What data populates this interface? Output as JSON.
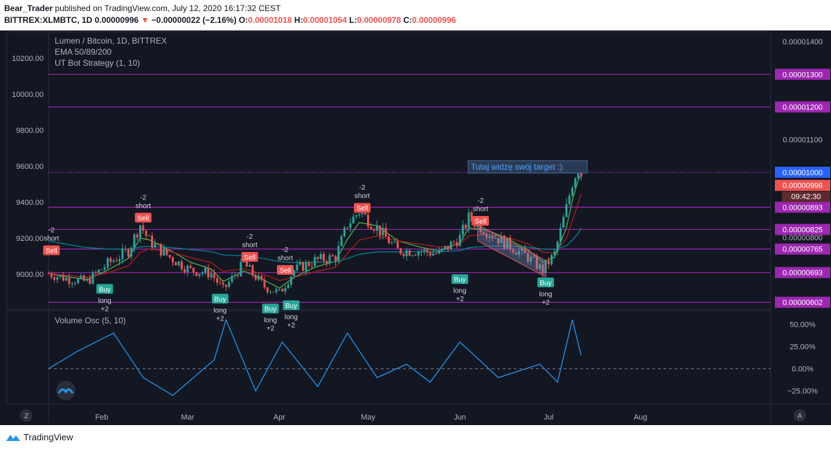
{
  "header": {
    "author": "Bear_Trader",
    "published_text": "published on TradingView.com, July 12, 2020 16:17:32 CEST",
    "symbol": "BITTREX:XLMBTC, 1D",
    "last": "0.00000996",
    "change": "−0.00000022 (−2.16%)",
    "o_label": "O:",
    "o": "0.00001018",
    "h_label": "H:",
    "h": "0.00001054",
    "l_label": "L:",
    "l": "0.00000978",
    "c_label": "C:",
    "c": "0.00000996"
  },
  "legend": {
    "title": "Lumen / Bitcoin, 1D, BITTREX",
    "ema": "EMA 50/89/200",
    "strategy": "UT Bot Strategy (1, 10)",
    "oscillator": "Volume Osc (5, 10)"
  },
  "annotation": "Tutaj widzę swój target  :)",
  "right_axis": {
    "ticks": [
      "0.00001400",
      "0.00001100",
      "0.00000800"
    ],
    "level_labels": [
      "0.00001300",
      "0.00001200",
      "0.00001000",
      "0.00000893",
      "0.00000825",
      "0.00000765",
      "0.00000693",
      "0.00000602"
    ],
    "last_price": "0.00000996",
    "countdown": "09:42:30"
  },
  "left_axis": {
    "ticks": [
      "10200.00",
      "10000.00",
      "9800.00",
      "9600.00",
      "9400.00",
      "9200.00",
      "9000.00"
    ]
  },
  "osc_axis": {
    "ticks": [
      "50.00%",
      "25.00%",
      "0.00%",
      "−25.00%"
    ]
  },
  "time_axis": {
    "labels": [
      "Feb",
      "Mar",
      "Apr",
      "May",
      "Jun",
      "Jul",
      "Aug"
    ]
  },
  "corner_left": "Z",
  "corner_right": "A",
  "footer": {
    "brand": "TradingView"
  },
  "signals": [
    {
      "kind": "sell",
      "label": "Sell",
      "text1": "-2",
      "text2": "short"
    },
    {
      "kind": "buy",
      "label": "Buy",
      "text1": "long",
      "text2": "+2"
    }
  ],
  "colors": {
    "background": "#131722",
    "level_line": "#9c27b0",
    "level_label_bg": "#9c27b0",
    "last_price_bg": "#ef5350",
    "blue_label_bg": "#2962ff",
    "up": "#26a69a",
    "down": "#ef5350",
    "ema50": "#4caf50",
    "ema89": "#b71c1c",
    "ema200": "#00838f",
    "oscillator": "#2196f3"
  },
  "chart_data": {
    "type": "candlestick",
    "symbol": "XLMBTC",
    "timeframe": "1D",
    "x_range": [
      "2020-01-14",
      "2020-08-31"
    ],
    "y_range": [
      5.8e-06,
      1.43e-05
    ],
    "right_axis_ticks": [
      1.4e-05,
      1.1e-05,
      8e-06
    ],
    "horizontal_levels": [
      1.3e-05,
      1.2e-05,
      1e-05,
      8.93e-06,
      8.25e-06,
      7.65e-06,
      6.93e-06,
      6.02e-06
    ],
    "last_price": 9.96e-06,
    "last_bar": {
      "open": 1.018e-05,
      "high": 1.054e-05,
      "low": 9.78e-06,
      "close": 9.96e-06
    },
    "price_path": [
      {
        "date": "2020-01-14",
        "close": 6.9e-06
      },
      {
        "date": "2020-01-20",
        "close": 6.75e-06
      },
      {
        "date": "2020-01-27",
        "close": 6.65e-06
      },
      {
        "date": "2020-02-03",
        "close": 7.2e-06
      },
      {
        "date": "2020-02-10",
        "close": 7.6e-06
      },
      {
        "date": "2020-02-14",
        "close": 8.4e-06
      },
      {
        "date": "2020-02-17",
        "close": 7.9e-06
      },
      {
        "date": "2020-02-24",
        "close": 7.4e-06
      },
      {
        "date": "2020-03-02",
        "close": 7e-06
      },
      {
        "date": "2020-03-09",
        "close": 6.9e-06
      },
      {
        "date": "2020-03-13",
        "close": 6.4e-06
      },
      {
        "date": "2020-03-20",
        "close": 7.2e-06
      },
      {
        "date": "2020-03-27",
        "close": 6.5e-06
      },
      {
        "date": "2020-04-01",
        "close": 6.3e-06
      },
      {
        "date": "2020-04-06",
        "close": 7e-06
      },
      {
        "date": "2020-04-13",
        "close": 7.3e-06
      },
      {
        "date": "2020-04-20",
        "close": 7.4e-06
      },
      {
        "date": "2020-04-24",
        "close": 8.4e-06
      },
      {
        "date": "2020-04-28",
        "close": 8.8e-06
      },
      {
        "date": "2020-05-04",
        "close": 8.3e-06
      },
      {
        "date": "2020-05-11",
        "close": 7.6e-06
      },
      {
        "date": "2020-05-18",
        "close": 7.6e-06
      },
      {
        "date": "2020-05-25",
        "close": 7.5e-06
      },
      {
        "date": "2020-06-01",
        "close": 8e-06
      },
      {
        "date": "2020-06-04",
        "close": 8.6e-06
      },
      {
        "date": "2020-06-10",
        "close": 8.2e-06
      },
      {
        "date": "2020-06-17",
        "close": 7.8e-06
      },
      {
        "date": "2020-06-24",
        "close": 7.4e-06
      },
      {
        "date": "2020-06-29",
        "close": 7e-06
      },
      {
        "date": "2020-07-03",
        "close": 7.5e-06
      },
      {
        "date": "2020-07-07",
        "close": 8.9e-06
      },
      {
        "date": "2020-07-09",
        "close": 9.7e-06
      },
      {
        "date": "2020-07-11",
        "close": 1.02e-05
      },
      {
        "date": "2020-07-12",
        "close": 9.96e-06
      }
    ],
    "series": [
      {
        "name": "EMA 50",
        "color": "#4caf50"
      },
      {
        "name": "EMA 89",
        "color": "#b71c1c"
      },
      {
        "name": "EMA 200",
        "color": "#00838f"
      }
    ],
    "oscillator": {
      "name": "Volume Osc (5, 10)",
      "unit": "%",
      "y_range": [
        -40,
        65
      ],
      "ticks": [
        50,
        25,
        0,
        -25
      ],
      "values": [
        {
          "date": "2020-01-14",
          "v": 0
        },
        {
          "date": "2020-01-24",
          "v": 20
        },
        {
          "date": "2020-02-05",
          "v": 40
        },
        {
          "date": "2020-02-15",
          "v": -10
        },
        {
          "date": "2020-02-25",
          "v": -30
        },
        {
          "date": "2020-03-10",
          "v": 10
        },
        {
          "date": "2020-03-14",
          "v": 55
        },
        {
          "date": "2020-03-24",
          "v": -25
        },
        {
          "date": "2020-04-02",
          "v": 30
        },
        {
          "date": "2020-04-14",
          "v": -20
        },
        {
          "date": "2020-04-24",
          "v": 40
        },
        {
          "date": "2020-05-04",
          "v": -10
        },
        {
          "date": "2020-05-14",
          "v": 5
        },
        {
          "date": "2020-05-22",
          "v": -15
        },
        {
          "date": "2020-06-01",
          "v": 30
        },
        {
          "date": "2020-06-14",
          "v": -10
        },
        {
          "date": "2020-06-28",
          "v": 5
        },
        {
          "date": "2020-07-04",
          "v": -15
        },
        {
          "date": "2020-07-09",
          "v": 55
        },
        {
          "date": "2020-07-12",
          "v": 15
        }
      ]
    }
  }
}
